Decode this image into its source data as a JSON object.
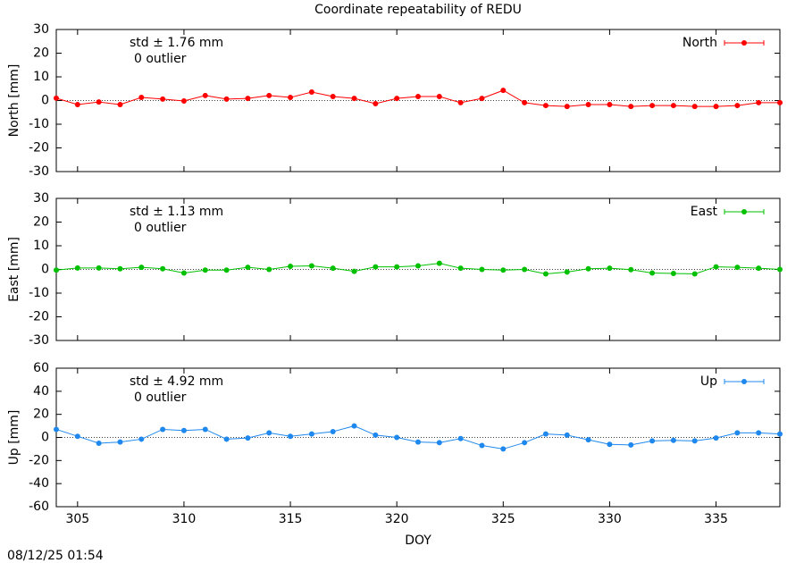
{
  "title": "Coordinate repeatability of REDU",
  "timestamp": "08/12/25 01:54",
  "chart_data": [
    {
      "type": "line",
      "ylabel": "North [mm]",
      "annotation": "std ± 1.76 mm",
      "outliers": "0 outlier",
      "x": [
        304,
        305,
        306,
        307,
        308,
        309,
        310,
        311,
        312,
        313,
        314,
        315,
        316,
        317,
        318,
        319,
        320,
        321,
        322,
        323,
        324,
        325,
        326,
        327,
        328,
        329,
        330,
        331,
        332,
        333,
        334,
        335,
        336,
        337,
        338
      ],
      "series": [
        {
          "name": "North",
          "color": "#ff0000",
          "values": [
            1,
            -1.7,
            -0.6,
            -1.7,
            1.3,
            0.6,
            -0.2,
            2.1,
            0.6,
            0.9,
            2.1,
            1.3,
            3.6,
            1.7,
            0.9,
            -1.3,
            0.9,
            1.7,
            1.7,
            -0.9,
            0.9,
            4.3,
            -0.9,
            -2.1,
            -2.5,
            -1.7,
            -1.7,
            -2.5,
            -2.1,
            -2.1,
            -2.5,
            -2.5,
            -2.1,
            -0.9,
            -0.9
          ]
        }
      ],
      "xlim": [
        304,
        338
      ],
      "xticks": [
        305,
        310,
        315,
        320,
        325,
        330,
        335
      ],
      "ylim": [
        -30,
        30
      ],
      "yticks": [
        -30,
        -20,
        -10,
        0,
        10,
        20,
        30
      ],
      "legend": "top-right",
      "zero_line": true
    },
    {
      "type": "line",
      "ylabel": "East [mm]",
      "annotation": "std ± 1.13 mm",
      "outliers": "0 outlier",
      "x": [
        304,
        305,
        306,
        307,
        308,
        309,
        310,
        311,
        312,
        313,
        314,
        315,
        316,
        317,
        318,
        319,
        320,
        321,
        322,
        323,
        324,
        325,
        326,
        327,
        328,
        329,
        330,
        331,
        332,
        333,
        334,
        335,
        336,
        337,
        338
      ],
      "series": [
        {
          "name": "East",
          "color": "#00c000",
          "values": [
            -0.3,
            0.6,
            0.6,
            0.3,
            0.9,
            0.3,
            -1.5,
            -0.3,
            -0.3,
            0.9,
            0,
            1.3,
            1.5,
            0.5,
            -0.8,
            1.1,
            1.1,
            1.5,
            2.6,
            0.5,
            0,
            -0.3,
            0,
            -1.9,
            -1.1,
            0.3,
            0.5,
            -0.1,
            -1.5,
            -1.7,
            -1.9,
            1.1,
            0.9,
            0.5,
            0
          ]
        }
      ],
      "xlim": [
        304,
        338
      ],
      "xticks": [
        305,
        310,
        315,
        320,
        325,
        330,
        335
      ],
      "ylim": [
        -30,
        30
      ],
      "yticks": [
        -30,
        -20,
        -10,
        0,
        10,
        20,
        30
      ],
      "legend": "top-right",
      "zero_line": true
    },
    {
      "type": "line",
      "ylabel": "Up [mm]",
      "xlabel": "DOY",
      "annotation": "std ± 4.92 mm",
      "outliers": "0 outlier",
      "x": [
        304,
        305,
        306,
        307,
        308,
        309,
        310,
        311,
        312,
        313,
        314,
        315,
        316,
        317,
        318,
        319,
        320,
        321,
        322,
        323,
        324,
        325,
        326,
        327,
        328,
        329,
        330,
        331,
        332,
        333,
        334,
        335,
        336,
        337,
        338
      ],
      "series": [
        {
          "name": "Up",
          "color": "#1e88ee",
          "values": [
            7,
            1,
            -5,
            -4,
            -1.5,
            7,
            6,
            7,
            -1.5,
            -0.5,
            4,
            1,
            3,
            5,
            10,
            2,
            0,
            -4,
            -4.5,
            -1,
            -7,
            -10,
            -4.5,
            3,
            2,
            -2,
            -6,
            -6.5,
            -3,
            -2.5,
            -3,
            -0.5,
            4,
            4,
            3
          ]
        }
      ],
      "xlim": [
        304,
        338
      ],
      "xticks": [
        305,
        310,
        315,
        320,
        325,
        330,
        335
      ],
      "ylim": [
        -60,
        60
      ],
      "yticks": [
        -60,
        -40,
        -20,
        0,
        20,
        40,
        60
      ],
      "legend": "top-right",
      "zero_line": true,
      "show_xticklabels": true
    }
  ]
}
